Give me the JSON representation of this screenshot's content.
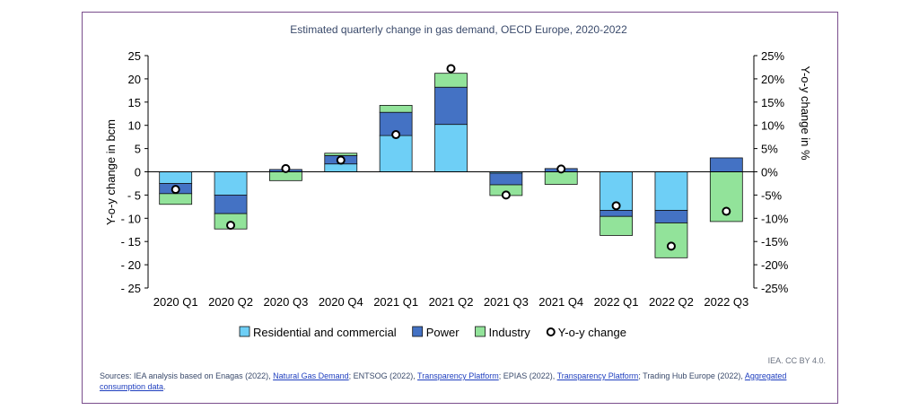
{
  "chart_data": {
    "type": "bar",
    "stacked": true,
    "title": "Estimated quarterly change in gas demand, OECD Europe, 2020-2022",
    "ylabel": "Y-o-y change in bcm",
    "y2label": "Y-o-y change in %",
    "ylim": [
      -25,
      25
    ],
    "y2lim": [
      -25,
      25
    ],
    "yticks": [
      "25",
      "20",
      "15",
      "10",
      "5",
      "0",
      "- 5",
      "- 10",
      "- 15",
      "- 20",
      "- 25"
    ],
    "y2ticks": [
      "25%",
      "20%",
      "15%",
      "10%",
      "5%",
      "0%",
      "-5%",
      "-10%",
      "-15%",
      "-20%",
      "-25%"
    ],
    "categories": [
      "2020 Q1",
      "2020 Q2",
      "2020 Q3",
      "2020 Q4",
      "2021 Q1",
      "2021 Q2",
      "2021 Q3",
      "2021 Q4",
      "2022 Q1",
      "2022 Q2",
      "2022 Q3"
    ],
    "series": [
      {
        "name": "Residential and commercial",
        "color": "#6ecff6",
        "values": [
          -2.5,
          -5.0,
          0.0,
          1.7,
          7.8,
          10.2,
          -0.3,
          0.0,
          -8.3,
          -8.3,
          0.0
        ]
      },
      {
        "name": "Power",
        "color": "#4472c4",
        "values": [
          -2.2,
          -4.0,
          0.5,
          1.8,
          5.0,
          8.0,
          -2.5,
          0.7,
          -1.3,
          -2.7,
          3.0
        ]
      },
      {
        "name": "Industry",
        "color": "#92e39a",
        "values": [
          -2.3,
          -3.3,
          -1.9,
          0.5,
          1.5,
          3.0,
          -2.3,
          -2.7,
          -4.1,
          -7.5,
          -10.7
        ]
      }
    ],
    "line_series": {
      "name": "Y-o-y change",
      "axis": "right",
      "values": [
        -3.8,
        -11.5,
        0.7,
        2.5,
        8.0,
        22.2,
        -5.0,
        0.6,
        -7.3,
        -16.0,
        -8.5
      ]
    },
    "legend": {
      "position": "bottom"
    },
    "grid": false
  },
  "credit": "IEA. CC BY 4.0.",
  "sources": [
    {
      "text": "Sources: IEA analysis based on Enagas (2022), ",
      "link": false
    },
    {
      "text": "Natural Gas Demand",
      "link": true
    },
    {
      "text": "; ENTSOG (2022), ",
      "link": false
    },
    {
      "text": "Transparency Platform",
      "link": true
    },
    {
      "text": "; EPIAS (2022), ",
      "link": false
    },
    {
      "text": "Transparency Platform",
      "link": true
    },
    {
      "text": "; Trading Hub Europe (2022), ",
      "link": false
    },
    {
      "text": "Aggregated consumption data",
      "link": true
    },
    {
      "text": ".",
      "link": false
    }
  ]
}
